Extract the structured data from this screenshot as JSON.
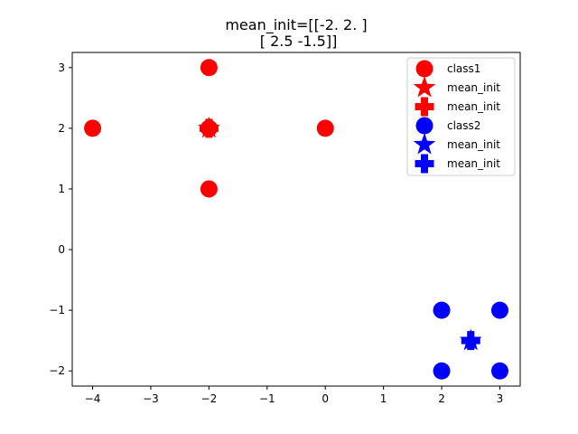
{
  "chart_data": {
    "type": "scatter",
    "title_lines": [
      "mean_init=[[-2.   2. ]",
      " [ 2.5 -1.5]]"
    ],
    "xlabel": "",
    "ylabel": "",
    "xlim": [
      -4.35,
      3.35
    ],
    "ylim": [
      -2.25,
      3.25
    ],
    "xticks": [
      -4,
      -3,
      -2,
      -1,
      0,
      1,
      2,
      3
    ],
    "yticks": [
      -2,
      -1,
      0,
      1,
      2,
      3
    ],
    "xtick_labels": [
      "−4",
      "−3",
      "−2",
      "−1",
      "0",
      "1",
      "2",
      "3"
    ],
    "ytick_labels": [
      "−2",
      "−1",
      "0",
      "1",
      "2",
      "3"
    ],
    "grid": false,
    "legend_position": "upper right",
    "series": [
      {
        "name": "class1",
        "marker": "circle",
        "color": "#ff0000",
        "x": [
          -4,
          -2,
          -2,
          0,
          -2
        ],
        "y": [
          2,
          3,
          1,
          2,
          2
        ]
      },
      {
        "name": "mean_init",
        "marker": "star",
        "color": "#ff0000",
        "x": [
          -2
        ],
        "y": [
          2
        ]
      },
      {
        "name": "mean_init",
        "marker": "plus",
        "color": "#ff0000",
        "x": [
          -2
        ],
        "y": [
          2
        ]
      },
      {
        "name": "class2",
        "marker": "circle",
        "color": "#0000ff",
        "x": [
          2,
          3,
          2,
          3
        ],
        "y": [
          -1,
          -1,
          -2,
          -2
        ]
      },
      {
        "name": "mean_init",
        "marker": "star",
        "color": "#0000ff",
        "x": [
          2.5
        ],
        "y": [
          -1.5
        ]
      },
      {
        "name": "mean_init",
        "marker": "plus",
        "color": "#0000ff",
        "x": [
          2.5
        ],
        "y": [
          -1.5
        ]
      }
    ]
  }
}
